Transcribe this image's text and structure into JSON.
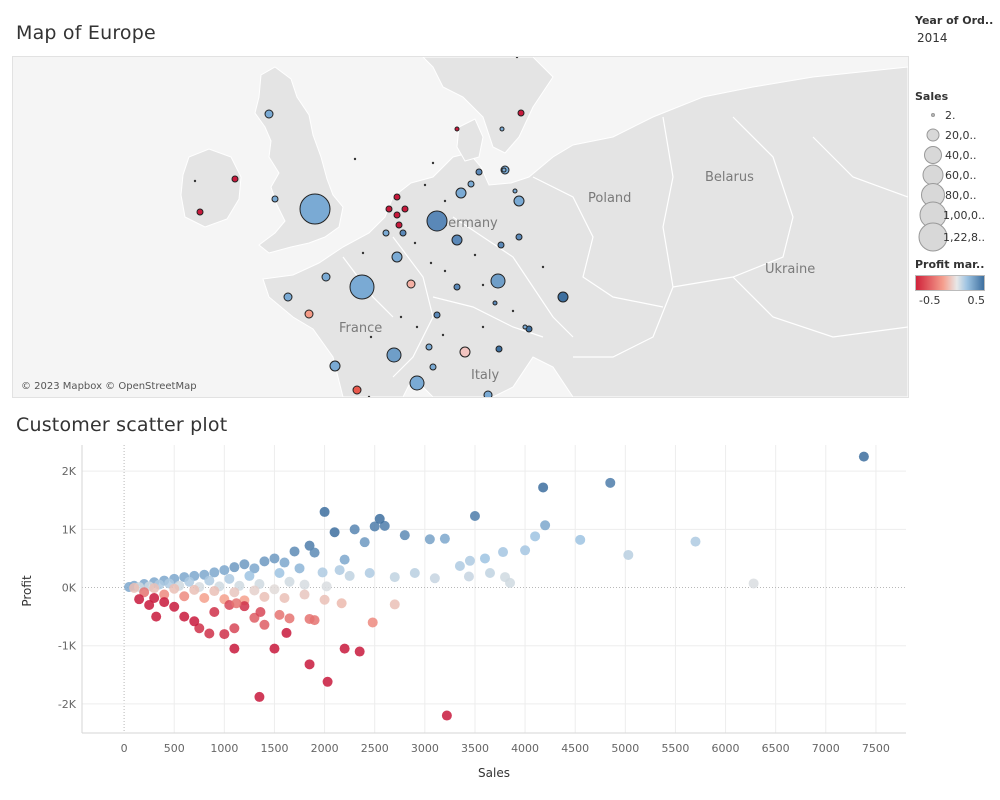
{
  "map": {
    "title": "Map of Europe",
    "attribution": "© 2023 Mapbox © OpenStreetMap",
    "country_labels": [
      "Poland",
      "Belarus",
      "Ukraine",
      "France",
      "Germany",
      "Italy"
    ]
  },
  "legends": {
    "year": {
      "header": "Year of Ord..",
      "value": "2014"
    },
    "sales": {
      "header": "Sales",
      "items": [
        "2.",
        "20,0..",
        "40,0..",
        "60,0..",
        "80,0..",
        "1,00,0..",
        "1,22,8.."
      ]
    },
    "profit": {
      "header": "Profit mar..",
      "min_label": "-0.5",
      "max_label": "0.5"
    }
  },
  "colors": {
    "negative": "#c8193c",
    "light_negative": "#f4a08c",
    "neutral": "#e0e0e0",
    "light_positive": "#9dc3e2",
    "positive": "#3d6f9f",
    "map_land": "#e8e8e8",
    "map_water": "#f6f6f6"
  },
  "chart_data": {
    "type": "scatter",
    "title": "Customer scatter plot",
    "xlabel": "Sales",
    "ylabel": "Profit",
    "xlim": [
      -420,
      7800
    ],
    "ylim": [
      -2500,
      2450
    ],
    "xticks": [
      0,
      500,
      1000,
      1500,
      2000,
      2500,
      3000,
      3500,
      4000,
      4500,
      5000,
      5500,
      6000,
      6500,
      7000,
      7500
    ],
    "xtick_labels": [
      "0",
      "500",
      "1000",
      "1500",
      "2000",
      "2500",
      "3000",
      "3500",
      "4000",
      "4500",
      "5000",
      "5500",
      "6000",
      "6500",
      "7000",
      "7500"
    ],
    "yticks": [
      2000,
      1000,
      0,
      -1000,
      -2000
    ],
    "ytick_labels": [
      "2K",
      "1K",
      "0K",
      "-1K",
      "-2K"
    ],
    "color_by": "Profit margin",
    "points": [
      [
        7380,
        2250,
        0.5
      ],
      [
        4850,
        1800,
        0.45
      ],
      [
        4180,
        1720,
        0.5
      ],
      [
        4200,
        1070,
        0.3
      ],
      [
        3500,
        1230,
        0.45
      ],
      [
        4100,
        880,
        0.2
      ],
      [
        4550,
        820,
        0.2
      ],
      [
        5700,
        790,
        0.15
      ],
      [
        5030,
        560,
        0.12
      ],
      [
        6280,
        70,
        0.02
      ],
      [
        4000,
        640,
        0.18
      ],
      [
        3780,
        610,
        0.18
      ],
      [
        3850,
        80,
        0.05
      ],
      [
        3350,
        370,
        0.15
      ],
      [
        3450,
        460,
        0.15
      ],
      [
        3200,
        840,
        0.3
      ],
      [
        3050,
        830,
        0.32
      ],
      [
        2600,
        1060,
        0.45
      ],
      [
        2500,
        1050,
        0.45
      ],
      [
        2550,
        1180,
        0.5
      ],
      [
        2800,
        900,
        0.4
      ],
      [
        3650,
        250,
        0.1
      ],
      [
        3440,
        190,
        0.08
      ],
      [
        3100,
        160,
        0.08
      ],
      [
        2900,
        250,
        0.12
      ],
      [
        2700,
        180,
        0.1
      ],
      [
        3800,
        180,
        0.05
      ],
      [
        3600,
        500,
        0.2
      ],
      [
        2000,
        1300,
        0.55
      ],
      [
        2100,
        950,
        0.5
      ],
      [
        1850,
        720,
        0.45
      ],
      [
        2300,
        1000,
        0.42
      ],
      [
        2200,
        480,
        0.3
      ],
      [
        2400,
        780,
        0.35
      ],
      [
        2450,
        250,
        0.15
      ],
      [
        2250,
        200,
        0.1
      ],
      [
        2150,
        300,
        0.15
      ],
      [
        1980,
        260,
        0.15
      ],
      [
        1700,
        620,
        0.4
      ],
      [
        1500,
        500,
        0.35
      ],
      [
        1750,
        330,
        0.25
      ],
      [
        1600,
        430,
        0.3
      ],
      [
        1900,
        600,
        0.4
      ],
      [
        1400,
        450,
        0.35
      ],
      [
        1300,
        330,
        0.3
      ],
      [
        1200,
        400,
        0.35
      ],
      [
        1100,
        350,
        0.35
      ],
      [
        1000,
        300,
        0.3
      ],
      [
        900,
        260,
        0.3
      ],
      [
        800,
        220,
        0.3
      ],
      [
        700,
        200,
        0.3
      ],
      [
        600,
        180,
        0.3
      ],
      [
        500,
        150,
        0.3
      ],
      [
        400,
        120,
        0.3
      ],
      [
        300,
        90,
        0.3
      ],
      [
        200,
        60,
        0.3
      ],
      [
        100,
        30,
        0.3
      ],
      [
        50,
        10,
        0.3
      ],
      [
        1250,
        200,
        0.2
      ],
      [
        1050,
        150,
        0.15
      ],
      [
        850,
        120,
        0.15
      ],
      [
        650,
        100,
        0.15
      ],
      [
        450,
        70,
        0.15
      ],
      [
        350,
        50,
        0.15
      ],
      [
        1550,
        250,
        0.2
      ],
      [
        1650,
        100,
        0.05
      ],
      [
        1350,
        60,
        0.05
      ],
      [
        1150,
        30,
        0.05
      ],
      [
        950,
        20,
        0.05
      ],
      [
        750,
        10,
        0.03
      ],
      [
        550,
        30,
        0.05
      ],
      [
        250,
        20,
        0.05
      ],
      [
        150,
        10,
        0.05
      ],
      [
        2020,
        20,
        0.02
      ],
      [
        1800,
        50,
        0.03
      ],
      [
        1500,
        -30,
        -0.02
      ],
      [
        1300,
        -50,
        -0.05
      ],
      [
        1100,
        -80,
        -0.08
      ],
      [
        900,
        -60,
        -0.1
      ],
      [
        700,
        -40,
        -0.1
      ],
      [
        500,
        -20,
        -0.1
      ],
      [
        300,
        -10,
        -0.1
      ],
      [
        100,
        -5,
        -0.1
      ],
      [
        2700,
        -290,
        -0.1
      ],
      [
        2000,
        -210,
        -0.1
      ],
      [
        2170,
        -270,
        -0.12
      ],
      [
        1800,
        -120,
        -0.08
      ],
      [
        1600,
        -180,
        -0.1
      ],
      [
        1400,
        -160,
        -0.1
      ],
      [
        1200,
        -220,
        -0.2
      ],
      [
        1000,
        -200,
        -0.2
      ],
      [
        800,
        -180,
        -0.2
      ],
      [
        600,
        -150,
        -0.25
      ],
      [
        400,
        -120,
        -0.25
      ],
      [
        200,
        -80,
        -0.3
      ],
      [
        2480,
        -600,
        -0.25
      ],
      [
        1900,
        -560,
        -0.3
      ],
      [
        1850,
        -540,
        -0.3
      ],
      [
        1650,
        -530,
        -0.3
      ],
      [
        1550,
        -470,
        -0.3
      ],
      [
        1400,
        -640,
        -0.35
      ],
      [
        1300,
        -520,
        -0.35
      ],
      [
        1100,
        -700,
        -0.4
      ],
      [
        1000,
        -800,
        -0.45
      ],
      [
        850,
        -790,
        -0.45
      ],
      [
        750,
        -700,
        -0.45
      ],
      [
        700,
        -580,
        -0.5
      ],
      [
        600,
        -500,
        -0.5
      ],
      [
        500,
        -330,
        -0.5
      ],
      [
        400,
        -250,
        -0.5
      ],
      [
        300,
        -180,
        -0.5
      ],
      [
        320,
        -500,
        -0.5
      ],
      [
        250,
        -300,
        -0.5
      ],
      [
        150,
        -200,
        -0.5
      ],
      [
        2350,
        -1100,
        -0.5
      ],
      [
        2200,
        -1050,
        -0.5
      ],
      [
        1850,
        -1320,
        -0.5
      ],
      [
        1500,
        -1050,
        -0.5
      ],
      [
        1100,
        -1050,
        -0.5
      ],
      [
        1350,
        -1880,
        -0.5
      ],
      [
        2030,
        -1620,
        -0.5
      ],
      [
        3220,
        -2200,
        -0.5
      ],
      [
        1620,
        -780,
        -0.5
      ],
      [
        1200,
        -320,
        -0.45
      ],
      [
        900,
        -420,
        -0.45
      ],
      [
        1050,
        -300,
        -0.4
      ],
      [
        1360,
        -420,
        -0.4
      ],
      [
        1120,
        -270,
        -0.3
      ]
    ]
  }
}
